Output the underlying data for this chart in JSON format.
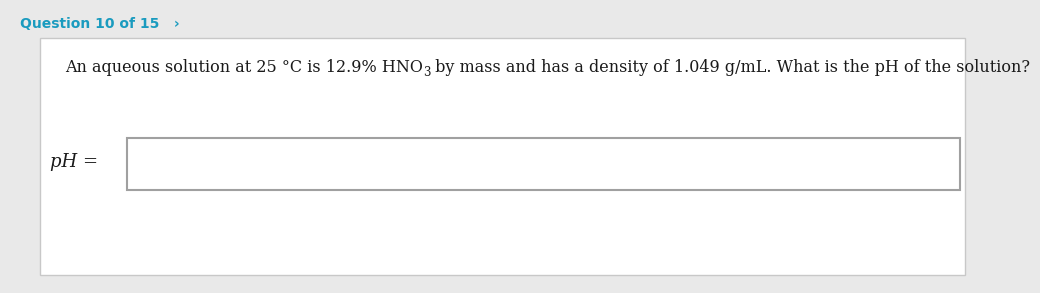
{
  "bg_outer": "#e9e9e9",
  "bg_card": "#ffffff",
  "header_text": "Question 10 of 15",
  "header_arrow": "›",
  "header_color": "#1a9bbf",
  "question_part1": "An aqueous solution at 25 °C is 12.9% HNO",
  "question_sub": "3",
  "question_part2": " by mass and has a density of 1.049 g/mL. What is the pH of the solution?",
  "label_text": "pH =",
  "font_family": "serif",
  "header_font": "sans-serif",
  "q_fontsize": 11.5,
  "sub_fontsize": 8.5,
  "label_fontsize": 13,
  "header_fontsize": 10,
  "bg_card_edge": "#c8c8c8",
  "input_edge": "#a0a0a0",
  "text_color": "#1a1a1a"
}
